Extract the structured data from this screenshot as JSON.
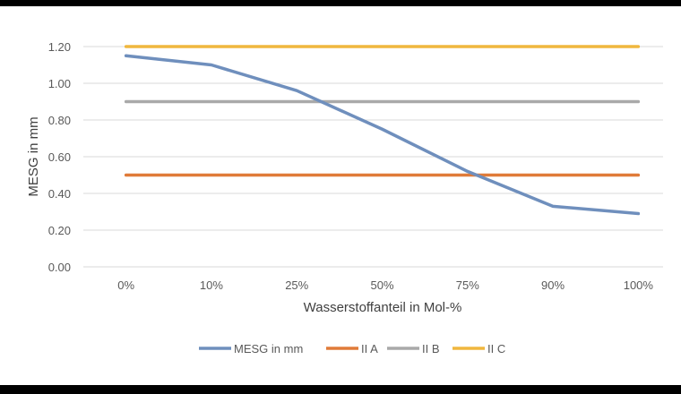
{
  "chart_data": {
    "type": "line",
    "title": "",
    "xlabel": "Wasserstoffanteil in Mol-%",
    "ylabel": "MESG in mm",
    "categories": [
      "0%",
      "10%",
      "25%",
      "50%",
      "75%",
      "90%",
      "100%"
    ],
    "y_ticks": [
      "0.00",
      "0.20",
      "0.40",
      "0.60",
      "0.80",
      "1.00",
      "1.20"
    ],
    "ylim": [
      0,
      1.2
    ],
    "grid": true,
    "legend_position": "bottom",
    "series": [
      {
        "name": "MESG in mm",
        "color": "#6f8fbd",
        "values": [
          1.15,
          1.1,
          0.96,
          0.75,
          0.52,
          0.33,
          0.29
        ]
      },
      {
        "name": "II A",
        "color": "#e07b39",
        "values": [
          0.5,
          0.5,
          0.5,
          0.5,
          0.5,
          0.5,
          0.5
        ]
      },
      {
        "name": "II B",
        "color": "#a9a9a9",
        "values": [
          0.9,
          0.9,
          0.9,
          0.9,
          0.9,
          0.9,
          0.9
        ]
      },
      {
        "name": "II C",
        "color": "#f0b73e",
        "values": [
          1.2,
          1.2,
          1.2,
          1.2,
          1.2,
          1.2,
          1.2
        ]
      }
    ]
  }
}
